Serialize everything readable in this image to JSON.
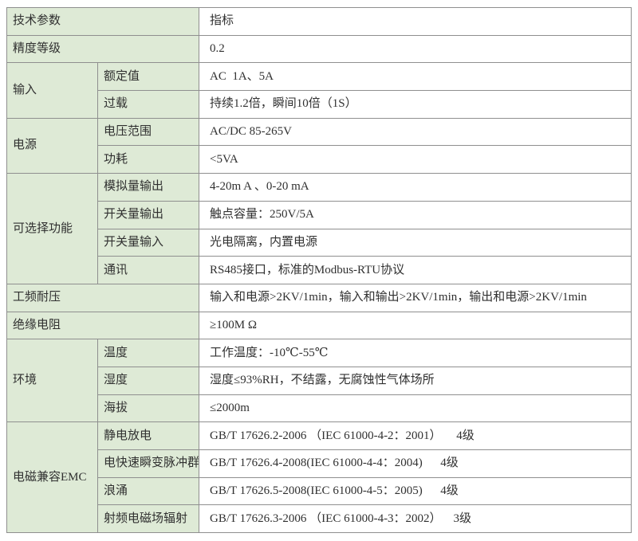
{
  "meta": {
    "label_bg_color": "#deead6",
    "value_bg_color": "#ffffff",
    "border_color": "#8f8f8f",
    "text_color": "#303030"
  },
  "table": {
    "rows": [
      {
        "cells": [
          {
            "text": "技术参数"
          },
          {
            "text": "指标"
          }
        ]
      },
      {
        "cells": [
          {
            "text": "精度等级"
          },
          {
            "text": "0.2"
          }
        ]
      },
      {
        "cells": [
          {
            "text": "输入"
          },
          {
            "text": "额定值"
          },
          {
            "text": "AC  1A、5A"
          }
        ]
      },
      {
        "cells": [
          {
            "text": "过载"
          },
          {
            "text": "持续1.2倍，瞬间10倍（1S）"
          }
        ]
      },
      {
        "cells": [
          {
            "text": "电源"
          },
          {
            "text": "电压范围"
          },
          {
            "text": "AC/DC 85-265V"
          }
        ]
      },
      {
        "cells": [
          {
            "text": "功耗"
          },
          {
            "text": "<5VA"
          }
        ]
      },
      {
        "cells": [
          {
            "text": "可选择功能"
          },
          {
            "text": "模拟量输出"
          },
          {
            "text": "4-20m A 、0-20 mA"
          }
        ]
      },
      {
        "cells": [
          {
            "text": "开关量输出"
          },
          {
            "text": "触点容量：250V/5A"
          }
        ]
      },
      {
        "cells": [
          {
            "text": "开关量输入"
          },
          {
            "text": "光电隔离，内置电源"
          }
        ]
      },
      {
        "cells": [
          {
            "text": "通讯"
          },
          {
            "text": "RS485接口，标准的Modbus-RTU协议"
          }
        ]
      },
      {
        "cells": [
          {
            "text": "工频耐压"
          },
          {
            "text": "输入和电源>2KV/1min，输入和输出>2KV/1min，输出和电源>2KV/1min"
          }
        ]
      },
      {
        "cells": [
          {
            "text": "绝缘电阻"
          },
          {
            "text": "≥100M Ω"
          }
        ]
      },
      {
        "cells": [
          {
            "text": "环境"
          },
          {
            "text": "温度"
          },
          {
            "text": "工作温度：-10℃-55℃"
          }
        ]
      },
      {
        "cells": [
          {
            "text": "湿度"
          },
          {
            "text": "湿度≤93%RH，不结露，无腐蚀性气体场所"
          }
        ]
      },
      {
        "cells": [
          {
            "text": "海拔"
          },
          {
            "text": "≤2000m"
          }
        ]
      },
      {
        "cells": [
          {
            "text": "电磁兼容EMC"
          },
          {
            "text": "静电放电"
          },
          {
            "text": "GB/T 17626.2-2006 （IEC 61000-4-2：2001）     4级"
          }
        ]
      },
      {
        "cells": [
          {
            "text": "电快速瞬变脉冲群"
          },
          {
            "text": "GB/T 17626.4-2008(IEC 61000-4-4：2004)      4级"
          }
        ]
      },
      {
        "cells": [
          {
            "text": "浪涌"
          },
          {
            "text": "GB/T 17626.5-2008(IEC 61000-4-5：2005)      4级"
          }
        ]
      },
      {
        "cells": [
          {
            "text": "射频电磁场辐射"
          },
          {
            "text": "GB/T 17626.3-2006 （IEC 61000-4-3：2002）    3级"
          }
        ]
      }
    ]
  }
}
